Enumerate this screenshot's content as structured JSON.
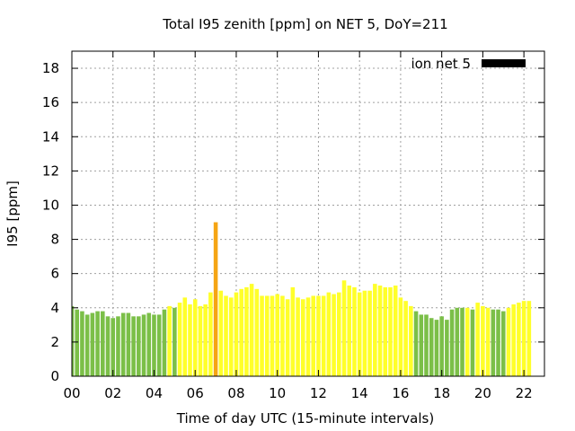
{
  "chart_data": {
    "type": "bar",
    "title": "Total I95 zenith [ppm] on NET 5, DoY=211",
    "xlabel": "Time of day UTC (15-minute intervals)",
    "ylabel": "I95 [ppm]",
    "xlim": [
      0,
      23
    ],
    "ylim": [
      0,
      19
    ],
    "x_ticks": [
      "00",
      "02",
      "04",
      "06",
      "08",
      "10",
      "12",
      "14",
      "16",
      "18",
      "20",
      "22"
    ],
    "y_ticks": [
      "0",
      "2",
      "4",
      "6",
      "8",
      "10",
      "12",
      "14",
      "16",
      "18"
    ],
    "grid": true,
    "legend_position": "top-right",
    "legend": [
      {
        "name": "ion net 5",
        "color": "#000000"
      }
    ],
    "colors": {
      "green": "#7bbf48",
      "yellow": "#ffff2a",
      "orange": "#f5a514"
    },
    "series": [
      {
        "name": "ion net 5",
        "interval_hours": 0.25,
        "values": [
          4.1,
          3.9,
          3.8,
          3.6,
          3.7,
          3.8,
          3.8,
          3.5,
          3.4,
          3.5,
          3.7,
          3.7,
          3.5,
          3.5,
          3.6,
          3.7,
          3.6,
          3.6,
          3.9,
          4.1,
          4.0,
          4.3,
          4.6,
          4.2,
          4.5,
          4.1,
          4.2,
          4.9,
          9.0,
          5.0,
          4.7,
          4.6,
          4.9,
          5.1,
          5.2,
          5.4,
          5.1,
          4.7,
          4.7,
          4.7,
          4.8,
          4.7,
          4.5,
          5.2,
          4.6,
          4.5,
          4.6,
          4.7,
          4.7,
          4.7,
          4.9,
          4.8,
          4.9,
          5.6,
          5.3,
          5.2,
          4.9,
          5.0,
          5.0,
          5.4,
          5.3,
          5.2,
          5.2,
          5.3,
          4.6,
          4.4,
          4.1,
          3.8,
          3.6,
          3.6,
          3.4,
          3.3,
          3.5,
          3.3,
          3.9,
          4.0,
          4.0,
          4.0,
          3.9,
          4.3,
          4.1,
          4.0,
          3.9,
          3.9,
          3.8,
          4.0,
          4.2,
          4.3,
          4.4,
          4.4
        ],
        "colors": [
          "green",
          "green",
          "green",
          "green",
          "green",
          "green",
          "green",
          "green",
          "green",
          "green",
          "green",
          "green",
          "green",
          "green",
          "green",
          "green",
          "green",
          "green",
          "green",
          "yellow",
          "green",
          "yellow",
          "yellow",
          "yellow",
          "yellow",
          "yellow",
          "yellow",
          "yellow",
          "orange",
          "yellow",
          "yellow",
          "yellow",
          "yellow",
          "yellow",
          "yellow",
          "yellow",
          "yellow",
          "yellow",
          "yellow",
          "yellow",
          "yellow",
          "yellow",
          "yellow",
          "yellow",
          "yellow",
          "yellow",
          "yellow",
          "yellow",
          "yellow",
          "yellow",
          "yellow",
          "yellow",
          "yellow",
          "yellow",
          "yellow",
          "yellow",
          "yellow",
          "yellow",
          "yellow",
          "yellow",
          "yellow",
          "yellow",
          "yellow",
          "yellow",
          "yellow",
          "yellow",
          "yellow",
          "green",
          "green",
          "green",
          "green",
          "green",
          "green",
          "green",
          "green",
          "green",
          "green",
          "yellow",
          "green",
          "yellow",
          "yellow",
          "yellow",
          "green",
          "green",
          "green",
          "yellow",
          "yellow",
          "yellow",
          "yellow",
          "yellow"
        ]
      }
    ]
  }
}
